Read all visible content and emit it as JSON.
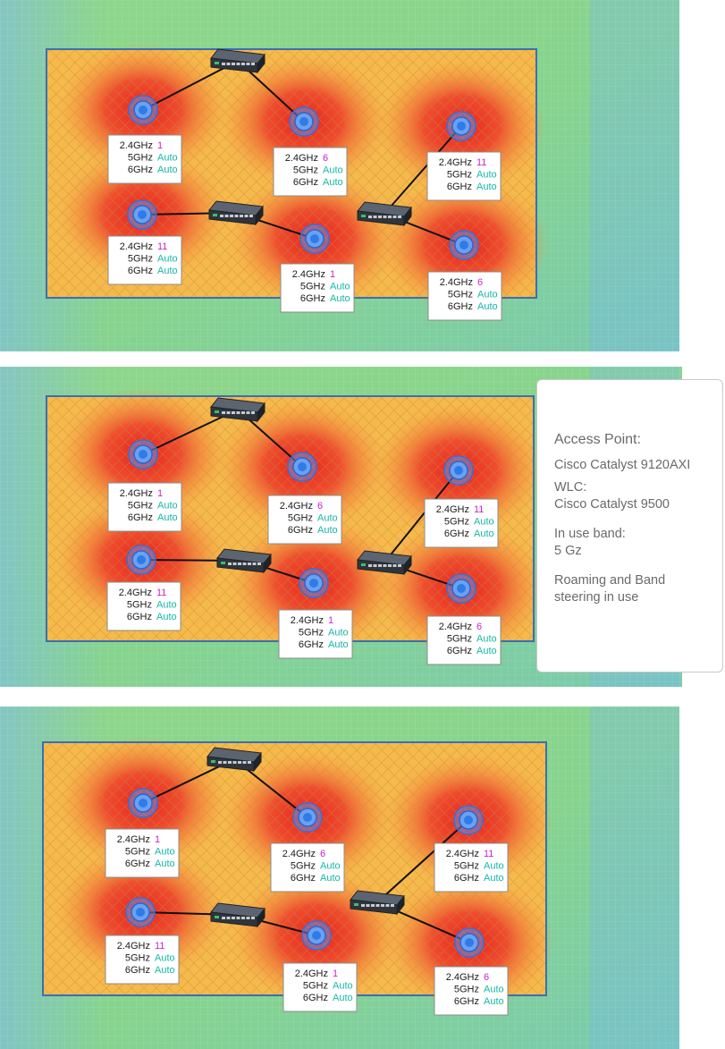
{
  "colors": {
    "channel": "#cc22cc",
    "auto": "#14b8a6",
    "wall_outline": "#3a6fb3",
    "ap": "#3b82f6"
  },
  "panels": [
    {
      "aps": [
        {
          "band24": "1",
          "band5": "Auto",
          "band6": "Auto"
        },
        {
          "band24": "6",
          "band5": "Auto",
          "band6": "Auto"
        },
        {
          "band24": "11",
          "band5": "Auto",
          "band6": "Auto"
        },
        {
          "band24": "11",
          "band5": "Auto",
          "band6": "Auto"
        },
        {
          "band24": "1",
          "band5": "Auto",
          "band6": "Auto"
        },
        {
          "band24": "6",
          "band5": "Auto",
          "band6": "Auto"
        }
      ]
    },
    {
      "aps": [
        {
          "band24": "1",
          "band5": "Auto",
          "band6": "Auto"
        },
        {
          "band24": "6",
          "band5": "Auto",
          "band6": "Auto"
        },
        {
          "band24": "11",
          "band5": "Auto",
          "band6": "Auto"
        },
        {
          "band24": "11",
          "band5": "Auto",
          "band6": "Auto"
        },
        {
          "band24": "1",
          "band5": "Auto",
          "band6": "Auto"
        },
        {
          "band24": "6",
          "band5": "Auto",
          "band6": "Auto"
        }
      ]
    },
    {
      "aps": [
        {
          "band24": "1",
          "band5": "Auto",
          "band6": "Auto"
        },
        {
          "band24": "6",
          "band5": "Auto",
          "band6": "Auto"
        },
        {
          "band24": "11",
          "band5": "Auto",
          "band6": "Auto"
        },
        {
          "band24": "11",
          "band5": "Auto",
          "band6": "Auto"
        },
        {
          "band24": "1",
          "band5": "Auto",
          "band6": "Auto"
        },
        {
          "band24": "6",
          "band5": "Auto",
          "band6": "Auto"
        }
      ]
    }
  ],
  "band_labels": {
    "b24": "2.4GHz",
    "b5": "5GHz",
    "b6": "6GHz"
  },
  "info": {
    "title": "Access Point:",
    "ap_model": "Cisco Catalyst 9120AXI",
    "wlc_label": "WLC:",
    "wlc_model": "Cisco Catalyst 9500",
    "band_label": "In use band:",
    "band_value": "5 Gz",
    "roaming_line1": "Roaming and Band",
    "roaming_line2": "steering in use"
  }
}
